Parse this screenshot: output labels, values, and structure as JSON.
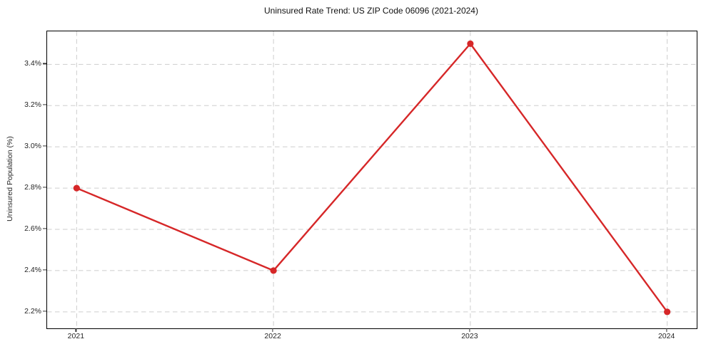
{
  "chart_data": {
    "type": "line",
    "title": "Uninsured Rate Trend: US ZIP Code 06096 (2021-2024)",
    "xlabel": "",
    "ylabel": "Uninsured Population (%)",
    "categories": [
      "2021",
      "2022",
      "2023",
      "2024"
    ],
    "x": [
      2021,
      2022,
      2023,
      2024
    ],
    "values": [
      2.8,
      2.4,
      3.5,
      2.2
    ],
    "y_ticks": [
      2.2,
      2.4,
      2.6,
      2.8,
      3.0,
      3.2,
      3.4
    ],
    "y_tick_labels": [
      "2.2%",
      "2.4%",
      "2.6%",
      "2.8%",
      "3.0%",
      "3.2%",
      "3.4%"
    ],
    "xlim": [
      2020.85,
      2024.15
    ],
    "ylim": [
      2.12,
      3.56
    ],
    "grid": true,
    "legend": "none",
    "line_color": "#d62728",
    "marker": "circle",
    "grid_color": "#cdcdcd",
    "spine_color": "#000000",
    "background_color": "#ffffff"
  }
}
